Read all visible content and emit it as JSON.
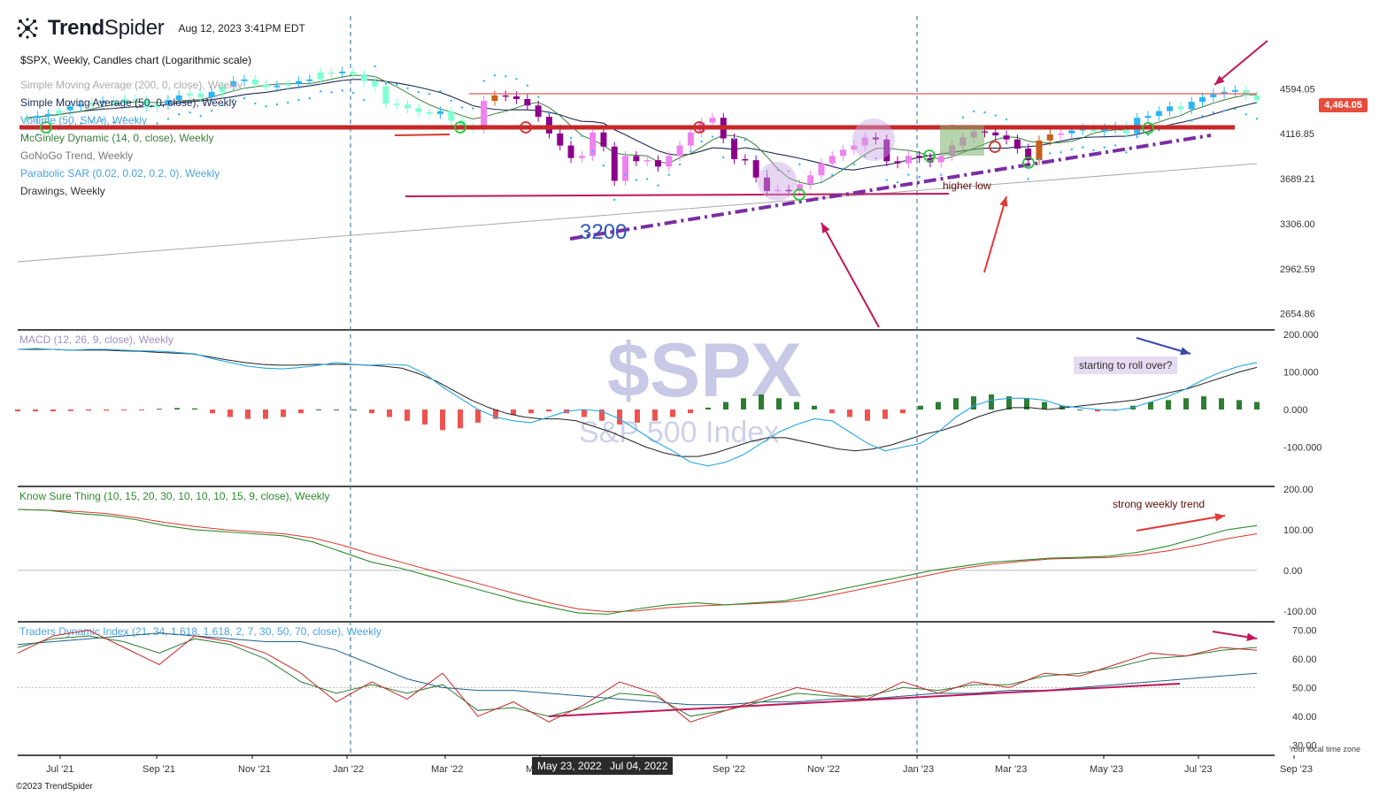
{
  "header": {
    "brand_bold": "Trend",
    "brand_light": "Spider",
    "timestamp": "Aug 12, 2023 3:41PM EDT",
    "chart_title": "$SPX, Weekly, Candles chart (Logarithmic scale)",
    "logo_icon": "trendspider-logo-icon"
  },
  "studies": [
    {
      "label": "Simple Moving Average (200, 0, close), Weekly",
      "color": "#aaaaaa"
    },
    {
      "label": "Simple Moving Average (50, 0, close), Weekly",
      "color": "#1f2a55"
    },
    {
      "label": "Volume (50, SMA), Weekly",
      "color": "#4aa3df"
    },
    {
      "label": "McGinley Dynamic (14, 0, close), Weekly",
      "color": "#3a7d3a"
    },
    {
      "label": "GoNoGo Trend, Weekly",
      "color": "#777777"
    },
    {
      "label": "Parabolic SAR (0.02, 0.02, 0.2, 0), Weekly",
      "color": "#4aa3df"
    },
    {
      "label": "Drawings, Weekly",
      "color": "#333333"
    }
  ],
  "watermark": {
    "symbol": "$SPX",
    "name": "S&P 500 Index"
  },
  "last_price": "4,464.05",
  "annotations": {
    "level_3200": "3200",
    "higher_low": "higher low",
    "roll_over": "starting to roll over?",
    "strong_trend": "strong weekly trend"
  },
  "date_chips": [
    "May 23, 2022",
    "Jul 04, 2022"
  ],
  "local_time": "Your local time zone",
  "copyright": "©2023 TrendSpider",
  "colors": {
    "bull_candle": "#29b6f6",
    "bull_light": "#7fffd4",
    "bear_candle": "#8b008b",
    "bear_light": "#ee82ee",
    "neutral_candle": "#c65f1a",
    "resistance": "#c62828",
    "macd_line": "#29a7e0",
    "signal_line": "#222222",
    "hist_pos": "#2e7d32",
    "hist_neg": "#ef5350",
    "kst_line": "#2e8b2e",
    "kst_signal": "#d9382b"
  },
  "chart_data": [
    {
      "type": "candlestick",
      "title": "$SPX, Weekly, Candles chart (Logarithmic scale)",
      "log_scale": true,
      "x_ticks": [
        "Jul '21",
        "Sep '21",
        "Nov '21",
        "Jan '22",
        "Mar '22",
        "May '22",
        "Jul '22",
        "Sep '22",
        "Nov '22",
        "Jan '23",
        "Mar '23",
        "May '23",
        "Jul '23",
        "Sep '23"
      ],
      "y_ticks": [
        4594.05,
        4116.85,
        3689.21,
        3306.0,
        2962.59,
        2654.86
      ],
      "ylim": [
        2580,
        4800
      ],
      "weekly_close": [
        4280,
        4300,
        4320,
        4360,
        4400,
        4420,
        4440,
        4460,
        4430,
        4480,
        4470,
        4390,
        4420,
        4470,
        4520,
        4540,
        4500,
        4560,
        4620,
        4680,
        4700,
        4640,
        4610,
        4630,
        4650,
        4680,
        4700,
        4780,
        4770,
        4790,
        4760,
        4680,
        4620,
        4430,
        4420,
        4380,
        4340,
        4320,
        4350,
        4250,
        4180,
        4170,
        4460,
        4520,
        4510,
        4480,
        4410,
        4290,
        4120,
        4000,
        3880,
        3900,
        4130,
        3990,
        3670,
        3900,
        3850,
        3860,
        3800,
        3900,
        4000,
        4130,
        4230,
        4280,
        4070,
        3870,
        3860,
        3700,
        3580,
        3590,
        3580,
        3640,
        3720,
        3830,
        3900,
        3960,
        4000,
        4080,
        4060,
        3850,
        3830,
        3900,
        3880,
        3840,
        3900,
        4000,
        4080,
        4140,
        4130,
        4100,
        4060,
        3970,
        3860,
        4050,
        4110,
        4120,
        4150,
        4170,
        4140,
        4170,
        4190,
        4120,
        4280,
        4300,
        4350,
        4400,
        4370,
        4450,
        4500,
        4540,
        4560,
        4580,
        4520,
        4470
      ]
    },
    {
      "type": "line",
      "title": "MACD (12, 26, 9, close), Weekly",
      "y_ticks": [
        200,
        100,
        0,
        -100
      ],
      "ylim": [
        -200,
        200
      ],
      "series": [
        {
          "values": [
            160,
            162,
            160,
            158,
            160,
            160,
            158,
            156,
            155,
            152,
            148,
            135,
            125,
            115,
            110,
            108,
            112,
            118,
            125,
            120,
            118,
            120,
            118,
            95,
            60,
            30,
            0,
            -20,
            -30,
            -35,
            -20,
            -5,
            0,
            -5,
            -25,
            -55,
            -85,
            -110,
            -140,
            -150,
            -140,
            -120,
            -90,
            -60,
            -40,
            -25,
            -30,
            -60,
            -90,
            -110,
            -100,
            -90,
            -60,
            -20,
            10,
            25,
            30,
            30,
            25,
            10,
            5,
            0,
            -2,
            5,
            20,
            35,
            55,
            80,
            100,
            115,
            125
          ]
        },
        {
          "values": [
            160,
            160,
            160,
            158,
            158,
            158,
            156,
            155,
            152,
            150,
            148,
            140,
            132,
            125,
            120,
            118,
            118,
            120,
            120,
            120,
            118,
            115,
            110,
            95,
            75,
            50,
            25,
            5,
            -10,
            -20,
            -25,
            -25,
            -30,
            -45,
            -60,
            -80,
            -100,
            -115,
            -125,
            -125,
            -115,
            -100,
            -85,
            -75,
            -75,
            -85,
            -95,
            -105,
            -110,
            -105,
            -95,
            -80,
            -65,
            -55,
            -40,
            -20,
            -5,
            5,
            5,
            0,
            5,
            10,
            15,
            20,
            25,
            35,
            45,
            55,
            70,
            85,
            100,
            112
          ]
        },
        {
          "values": [
            -5,
            -5,
            -5,
            -4,
            -3,
            -3,
            -2,
            -2,
            2,
            4,
            3,
            -10,
            -20,
            -25,
            -25,
            -20,
            -10,
            0,
            0,
            0,
            -10,
            -20,
            -30,
            -40,
            -55,
            -50,
            -35,
            -25,
            -15,
            -10,
            -5,
            -10,
            -20,
            -30,
            -40,
            -35,
            -30,
            -20,
            -10,
            5,
            20,
            30,
            40,
            30,
            20,
            10,
            -10,
            -20,
            -30,
            -25,
            -10,
            10,
            20,
            30,
            35,
            40,
            35,
            30,
            20,
            10,
            0,
            -5,
            0,
            10,
            20,
            25,
            30,
            35,
            30,
            25,
            20
          ]
        }
      ]
    },
    {
      "type": "line",
      "title": "Know Sure Thing (10, 15, 20, 30, 10, 10, 10, 15, 9, close), Weekly",
      "y_ticks": [
        200,
        100,
        0,
        -100
      ],
      "ylim": [
        -120,
        200
      ],
      "series": [
        {
          "values": [
            150,
            148,
            140,
            135,
            125,
            110,
            100,
            95,
            90,
            85,
            70,
            45,
            20,
            5,
            -15,
            -35,
            -55,
            -75,
            -90,
            -105,
            -108,
            -95,
            -85,
            -80,
            -85,
            -80,
            -75,
            -60,
            -45,
            -30,
            -15,
            0,
            10,
            20,
            25,
            30,
            32,
            35,
            45,
            60,
            80,
            100,
            110
          ]
        },
        {
          "values": [
            150,
            148,
            145,
            140,
            130,
            118,
            108,
            100,
            95,
            90,
            80,
            62,
            40,
            20,
            0,
            -20,
            -40,
            -60,
            -80,
            -95,
            -102,
            -100,
            -92,
            -88,
            -85,
            -82,
            -78,
            -70,
            -55,
            -40,
            -25,
            -10,
            5,
            15,
            22,
            28,
            30,
            32,
            38,
            48,
            62,
            78,
            90
          ]
        }
      ]
    },
    {
      "type": "line",
      "title": "Traders Dynamic Index (21, 34, 1.618, 1.618, 2, 7, 30, 50, 70, close), Weekly",
      "y_ticks": [
        70,
        60,
        50,
        40,
        30
      ],
      "ylim": [
        27,
        72
      ],
      "series": [
        {
          "values": [
            65,
            66,
            67,
            68,
            69,
            68,
            67,
            66,
            66,
            63,
            58,
            53,
            50,
            49,
            49,
            48,
            47,
            46,
            45,
            44,
            44,
            45,
            45,
            46,
            46,
            47,
            48,
            48,
            49,
            49,
            50,
            51,
            52,
            53,
            54,
            55
          ]
        },
        {
          "values": [
            62,
            68,
            70,
            64,
            58,
            68,
            66,
            62,
            55,
            45,
            52,
            46,
            55,
            40,
            45,
            38,
            44,
            52,
            48,
            38,
            42,
            46,
            50,
            48,
            46,
            52,
            48,
            52,
            50,
            55,
            54,
            58,
            62,
            61,
            64,
            63
          ]
        },
        {
          "values": [
            64,
            67,
            68,
            66,
            62,
            67,
            65,
            60,
            52,
            48,
            51,
            48,
            51,
            42,
            43,
            40,
            43,
            48,
            47,
            40,
            42,
            45,
            48,
            47,
            47,
            50,
            49,
            51,
            51,
            54,
            55,
            57,
            60,
            61,
            63,
            64
          ]
        }
      ]
    }
  ]
}
